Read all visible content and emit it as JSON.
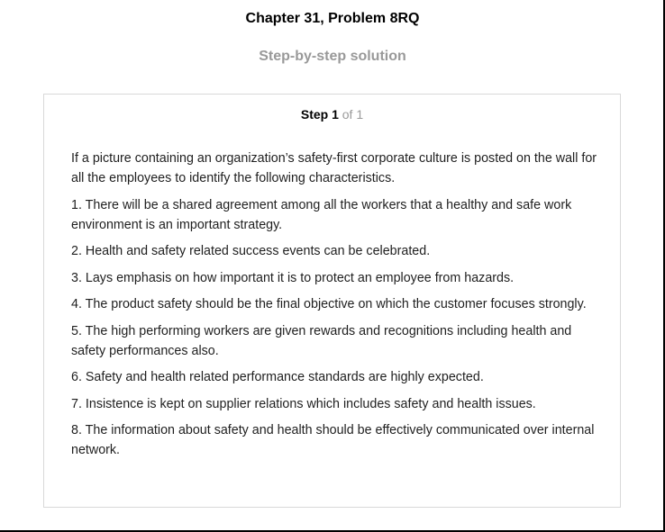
{
  "header": {
    "chapter_title": "Chapter 31, Problem 8RQ",
    "subtitle": "Step-by-step solution"
  },
  "step": {
    "label": "Step 1",
    "total": "of 1",
    "paragraphs": [
      "If a picture containing an organization’s safety-first corporate culture is posted on the wall for all the employees to identify the following characteristics.",
      "1. There will be a shared agreement among all the workers that a healthy and safe work environment is an important strategy.",
      "2. Health and safety related success events can be celebrated.",
      "3. Lays emphasis on how important it is to protect an employee from hazards.",
      "4. The product safety should be the final objective on which the customer focuses strongly.",
      "5. The high performing workers are given rewards and recognitions including health and safety performances also.",
      "6. Safety and health related performance standards are highly expected.",
      "7. Insistence is kept on supplier relations which includes safety and health issues.",
      "8. The information about safety and health should be effectively communicated over internal network."
    ]
  },
  "colors": {
    "title": "#000000",
    "subtitle": "#999999",
    "card_border": "#d9d9d9",
    "step_total": "#9a9a9a"
  }
}
